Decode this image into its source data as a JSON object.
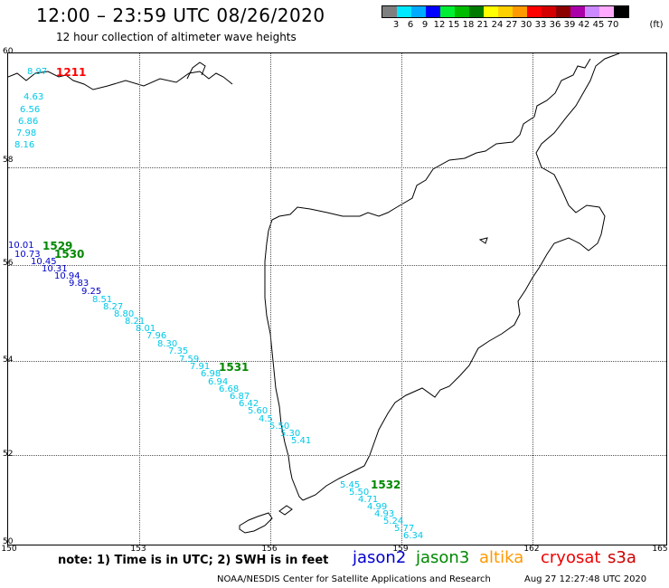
{
  "header": {
    "title": "12:00 – 23:59 UTC 08/26/2020",
    "subtitle": "12 hour collection of altimeter wave heights"
  },
  "legend": {
    "unit": "(ft)",
    "labels": [
      "3",
      "6",
      "9",
      "12",
      "15",
      "18",
      "21",
      "24",
      "27",
      "30",
      "33",
      "36",
      "39",
      "42",
      "45",
      "70"
    ],
    "colors": [
      "#7f7f7f",
      "#00e8ff",
      "#00aaff",
      "#0000ff",
      "#00ee33",
      "#00bb00",
      "#007a00",
      "#ffff00",
      "#ffd000",
      "#ff9900",
      "#ff0000",
      "#d40000",
      "#8c0000",
      "#aa00aa",
      "#cc88ff",
      "#ffaaff",
      "#000000"
    ]
  },
  "map": {
    "lat_labels": [
      "60",
      "58",
      "56",
      "54",
      "52",
      "50"
    ],
    "lon_labels": [
      "150",
      "153",
      "156",
      "159",
      "162",
      "165"
    ],
    "track_labels": [
      {
        "id": "1211",
        "color": "#ff0000"
      },
      {
        "id": "1529",
        "color": "#008800"
      },
      {
        "id": "1530",
        "color": "#008800"
      },
      {
        "id": "1531",
        "color": "#008800"
      },
      {
        "id": "1532",
        "color": "#008800"
      }
    ],
    "points": [
      {
        "v": "8.97",
        "c": "#00c8e8"
      },
      {
        "v": "4.63",
        "c": "#00c8e8"
      },
      {
        "v": "6.56",
        "c": "#00c8e8"
      },
      {
        "v": "6.86",
        "c": "#00c8e8"
      },
      {
        "v": "7.98",
        "c": "#00c8e8"
      },
      {
        "v": "8.16",
        "c": "#00c8e8"
      },
      {
        "v": "10.01",
        "c": "#0000cc"
      },
      {
        "v": "10.73",
        "c": "#0000cc"
      },
      {
        "v": "10.45",
        "c": "#0000cc"
      },
      {
        "v": "10.31",
        "c": "#0000cc"
      },
      {
        "v": "10.94",
        "c": "#0000cc"
      },
      {
        "v": "9.83",
        "c": "#0000cc"
      },
      {
        "v": "9.25",
        "c": "#0000cc"
      },
      {
        "v": "8.51",
        "c": "#00c8e8"
      },
      {
        "v": "8.27",
        "c": "#00c8e8"
      },
      {
        "v": "8.80",
        "c": "#00c8e8"
      },
      {
        "v": "8.21",
        "c": "#00c8e8"
      },
      {
        "v": "8.01",
        "c": "#00c8e8"
      },
      {
        "v": "7.96",
        "c": "#00c8e8"
      },
      {
        "v": "8.30",
        "c": "#00c8e8"
      },
      {
        "v": "7.35",
        "c": "#00c8e8"
      },
      {
        "v": "7.59",
        "c": "#00c8e8"
      },
      {
        "v": "7.91",
        "c": "#00c8e8"
      },
      {
        "v": "6.98",
        "c": "#00c8e8"
      },
      {
        "v": "6.94",
        "c": "#00c8e8"
      },
      {
        "v": "6.68",
        "c": "#00c8e8"
      },
      {
        "v": "6.87",
        "c": "#00c8e8"
      },
      {
        "v": "6.42",
        "c": "#00c8e8"
      },
      {
        "v": "5.60",
        "c": "#00c8e8"
      },
      {
        "v": "4.5",
        "c": "#00c8e8"
      },
      {
        "v": "5.50",
        "c": "#00c8e8"
      },
      {
        "v": "5.30",
        "c": "#00c8e8"
      },
      {
        "v": "5.41",
        "c": "#00c8e8"
      },
      {
        "v": "5.45",
        "c": "#00c8e8"
      },
      {
        "v": "5.50",
        "c": "#00c8e8"
      },
      {
        "v": "4.71",
        "c": "#00c8e8"
      },
      {
        "v": "4.99",
        "c": "#00c8e8"
      },
      {
        "v": "4.93",
        "c": "#00c8e8"
      },
      {
        "v": "5.24",
        "c": "#00c8e8"
      },
      {
        "v": "5.77",
        "c": "#00c8e8"
      },
      {
        "v": "6.34",
        "c": "#00c8e8"
      }
    ]
  },
  "footer": {
    "note": "note:  1) Time is in UTC;  2) SWH is in feet",
    "satellites": [
      {
        "name": "jason2",
        "color": "#0000cc"
      },
      {
        "name": "jason3",
        "color": "#008800"
      },
      {
        "name": "altika",
        "color": "#ff9900"
      },
      {
        "name": "cryosat",
        "color": "#ee0000"
      },
      {
        "name": "s3a",
        "color": "#cc0000"
      }
    ],
    "credit": "NOAA/NESDIS Center for Satellite Applications and Research",
    "timestamp": "Aug 27 12:27:48 UTC 2020"
  }
}
